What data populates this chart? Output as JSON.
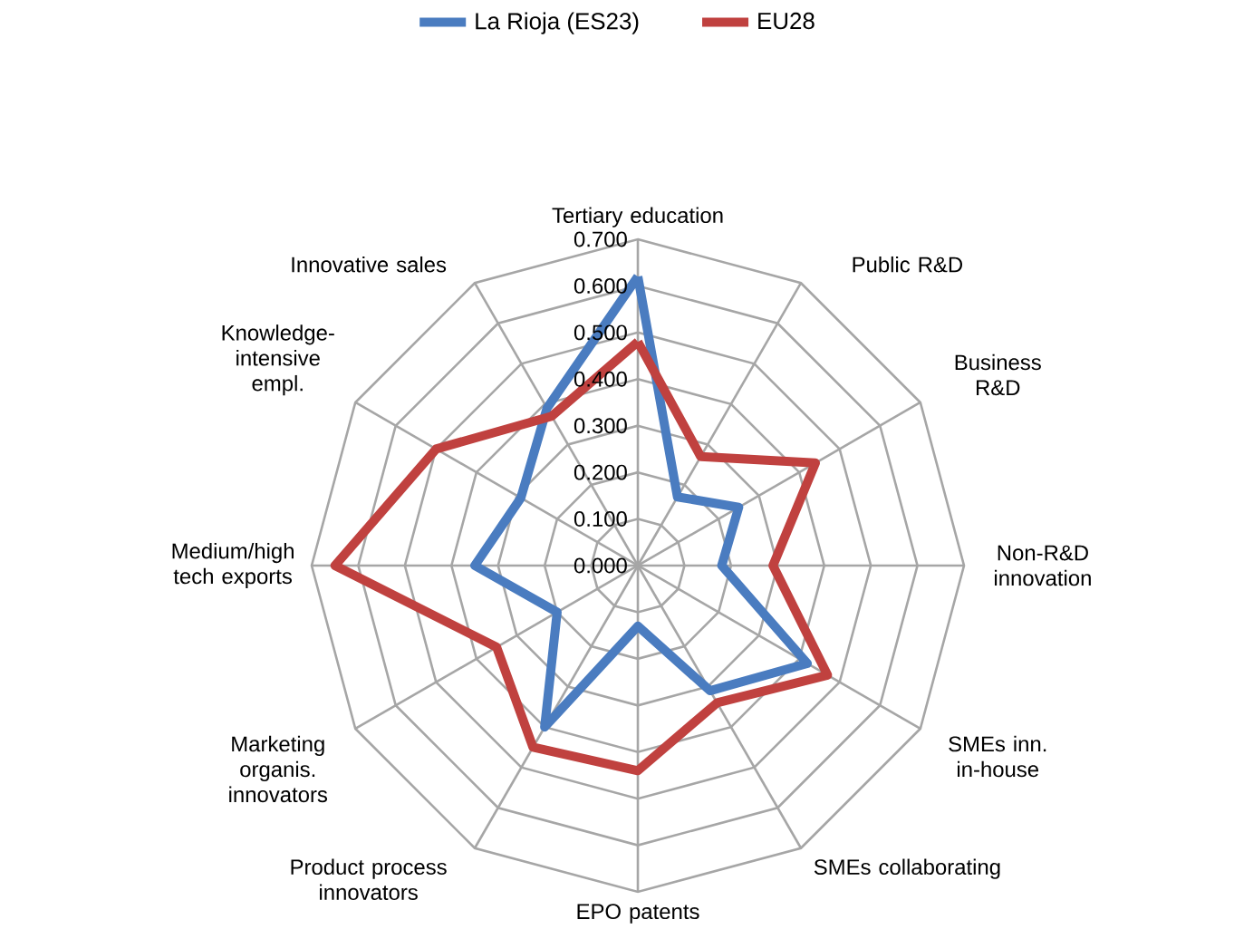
{
  "chart_data": {
    "type": "radar",
    "categories": [
      "Tertiary education",
      "Public R&D",
      "Business R&D",
      "Non-R&D innovation",
      "SMEs inn. in-house",
      "SMEs collaborating",
      "EPO patents",
      "Product process innovators",
      "Marketing organis. innovators",
      "Medium/high tech exports",
      "Knowledge-intensive empl.",
      "Innovative sales"
    ],
    "series": [
      {
        "name": "La Rioja (ES23)",
        "color": "#4a7cc0",
        "values": [
          0.62,
          0.17,
          0.25,
          0.18,
          0.42,
          0.31,
          0.13,
          0.4,
          0.2,
          0.35,
          0.29,
          0.39
        ]
      },
      {
        "name": "EU28",
        "color": "#c0413f",
        "values": [
          0.48,
          0.27,
          0.44,
          0.29,
          0.47,
          0.34,
          0.44,
          0.45,
          0.35,
          0.65,
          0.5,
          0.37
        ]
      }
    ],
    "ylim": [
      0,
      0.7
    ],
    "yticks": [
      {
        "value": 0,
        "label": "0.000"
      },
      {
        "value": 0.1,
        "label": "0.100"
      },
      {
        "value": 0.2,
        "label": "0.200"
      },
      {
        "value": 0.3,
        "label": "0.300"
      },
      {
        "value": 0.4,
        "label": "0.400"
      },
      {
        "value": 0.5,
        "label": "0.500"
      },
      {
        "value": 0.6,
        "label": "0.600"
      },
      {
        "value": 0.7,
        "label": "0.700"
      }
    ],
    "grid": true,
    "legend": "top"
  }
}
